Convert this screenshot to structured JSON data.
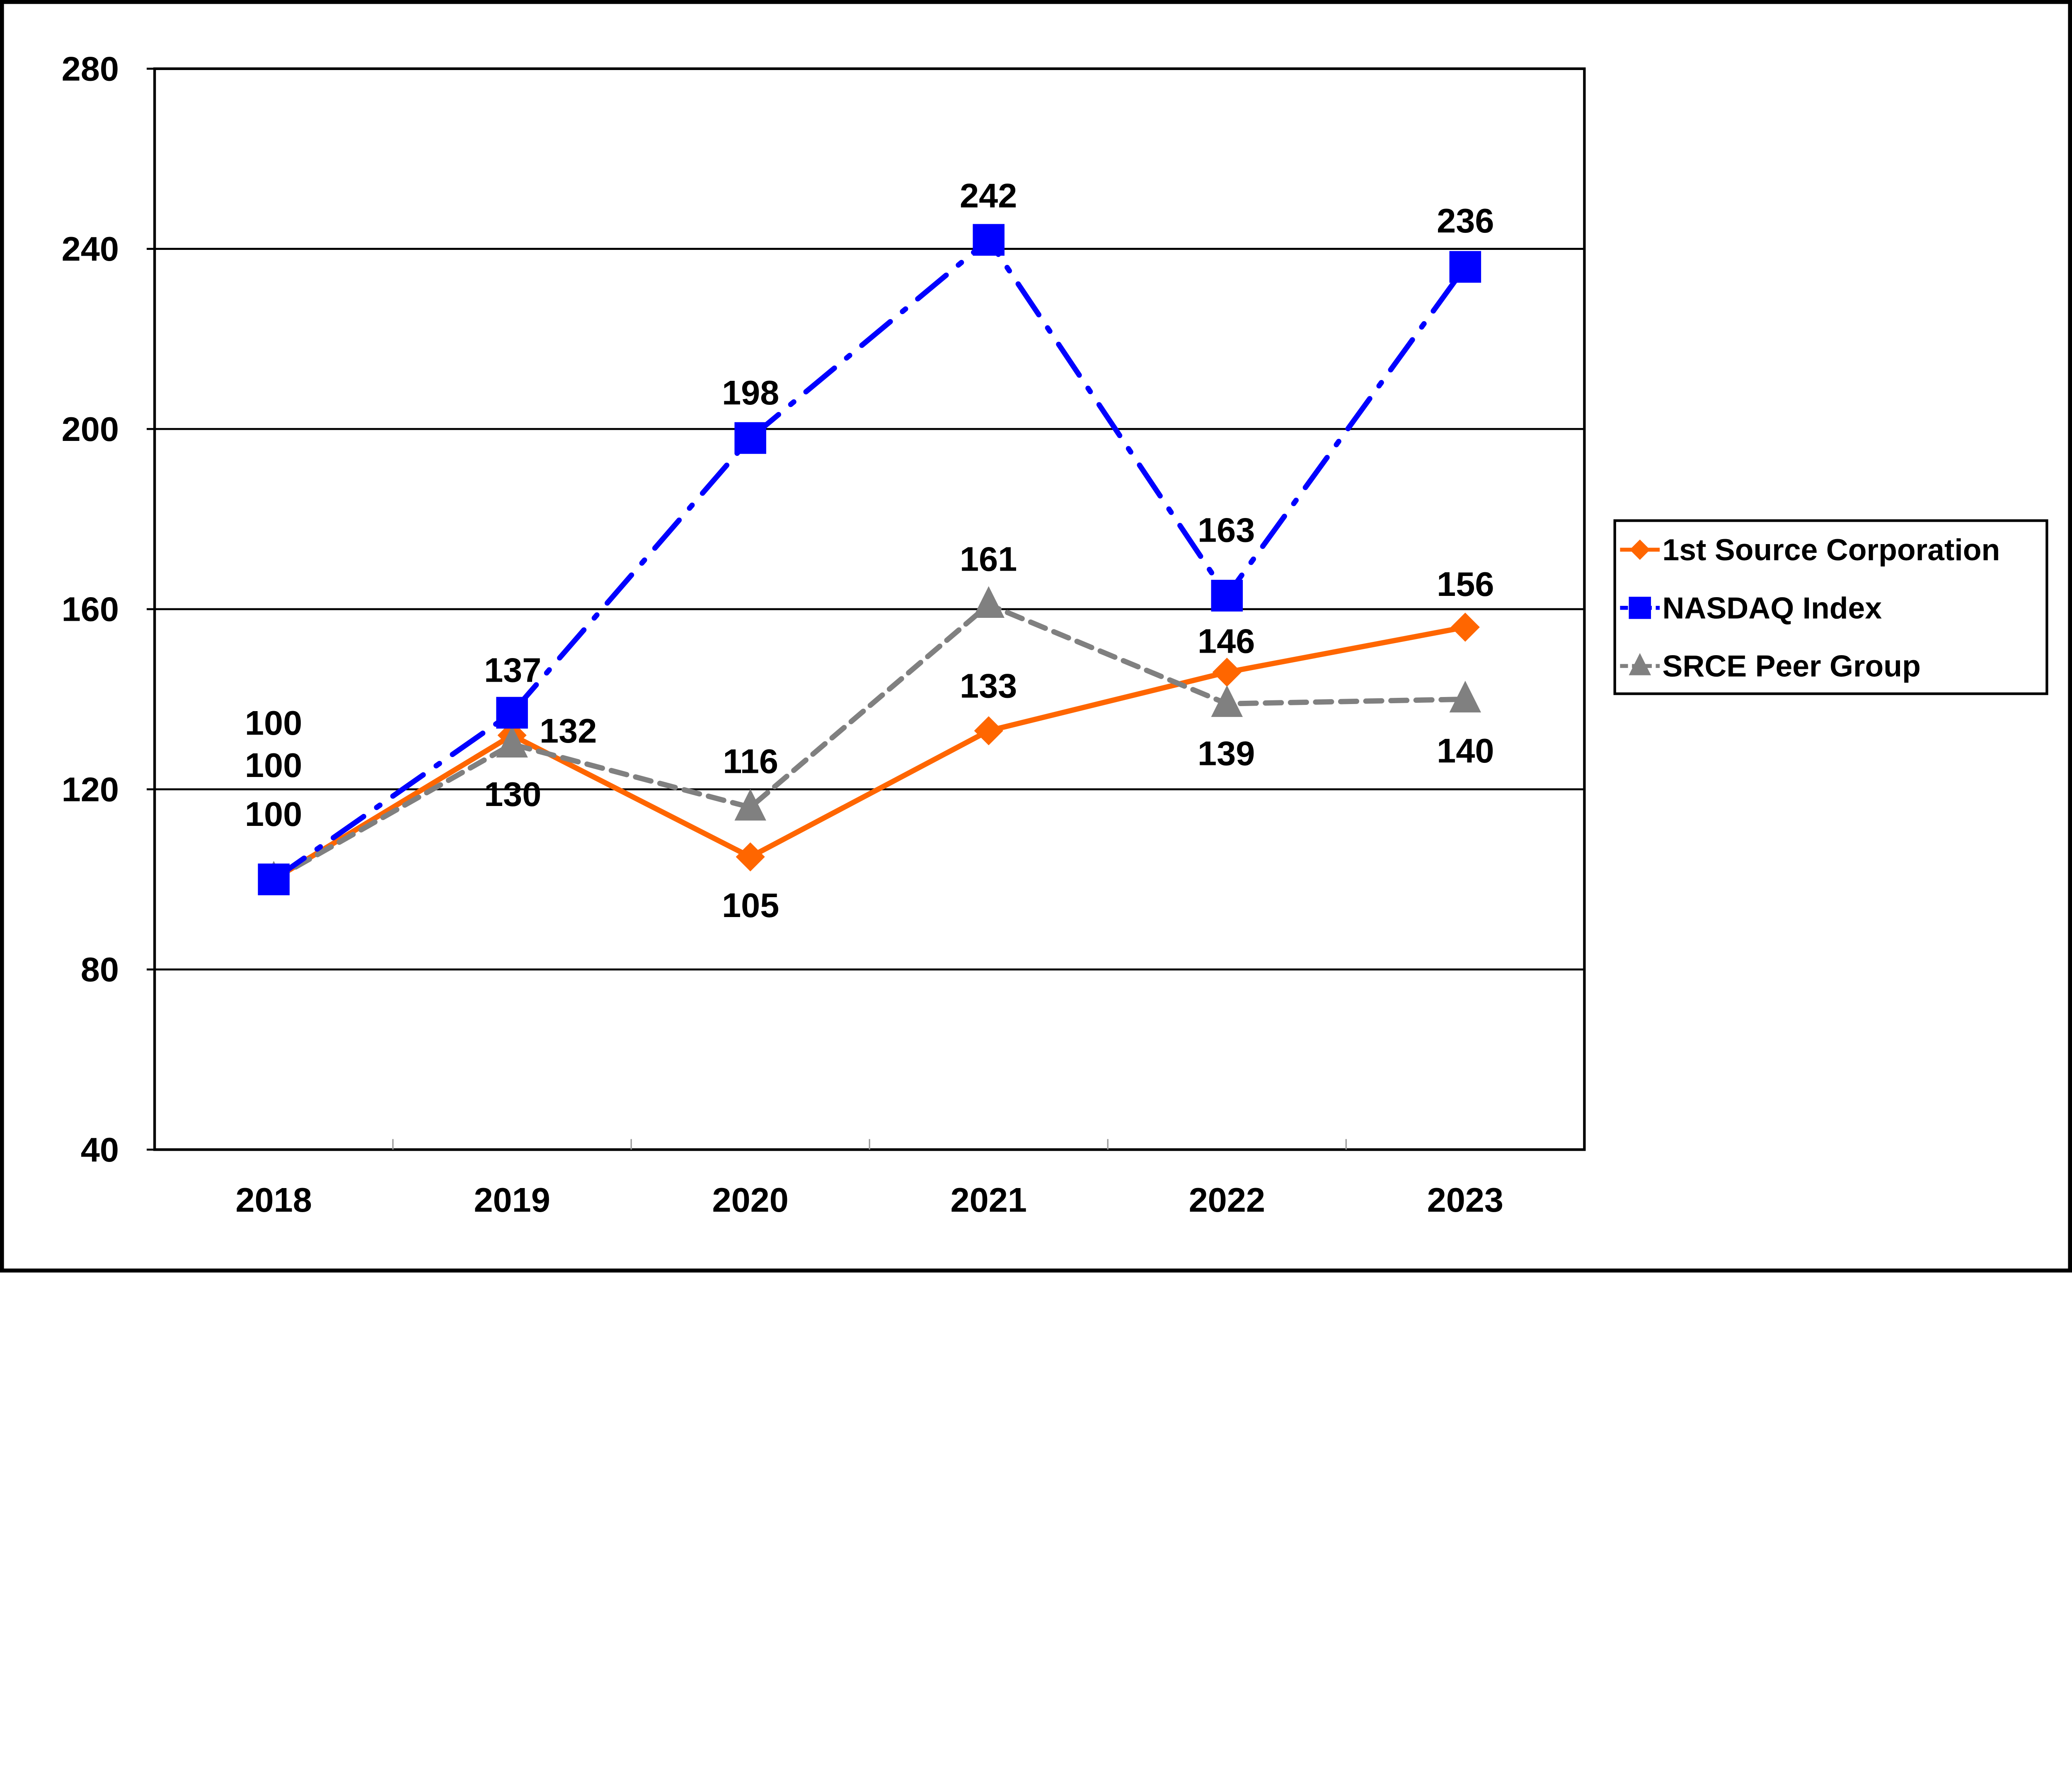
{
  "chart_data": {
    "type": "line",
    "title": "",
    "xlabel": "",
    "ylabel": "",
    "categories": [
      "2018",
      "2019",
      "2020",
      "2021",
      "2022",
      "2023"
    ],
    "ylim": [
      40,
      280
    ],
    "yticks": [
      "40",
      "80",
      "120",
      "160",
      "200",
      "240",
      "280"
    ],
    "grid": "horizontal",
    "legend_position": "right",
    "series": [
      {
        "name": "1st Source Corporation",
        "values": [
          100,
          132,
          105,
          133,
          146,
          156
        ],
        "color": "#FF6600",
        "marker": "diamond",
        "line": "solid"
      },
      {
        "name": "NASDAQ Index",
        "values": [
          100,
          137,
          198,
          242,
          163,
          236
        ],
        "color": "#0000FF",
        "marker": "square",
        "line": "dash-dot"
      },
      {
        "name": "SRCE Peer Group",
        "values": [
          100,
          130,
          116,
          161,
          139,
          140
        ],
        "color": "#808080",
        "marker": "triangle",
        "line": "dashed"
      }
    ]
  }
}
